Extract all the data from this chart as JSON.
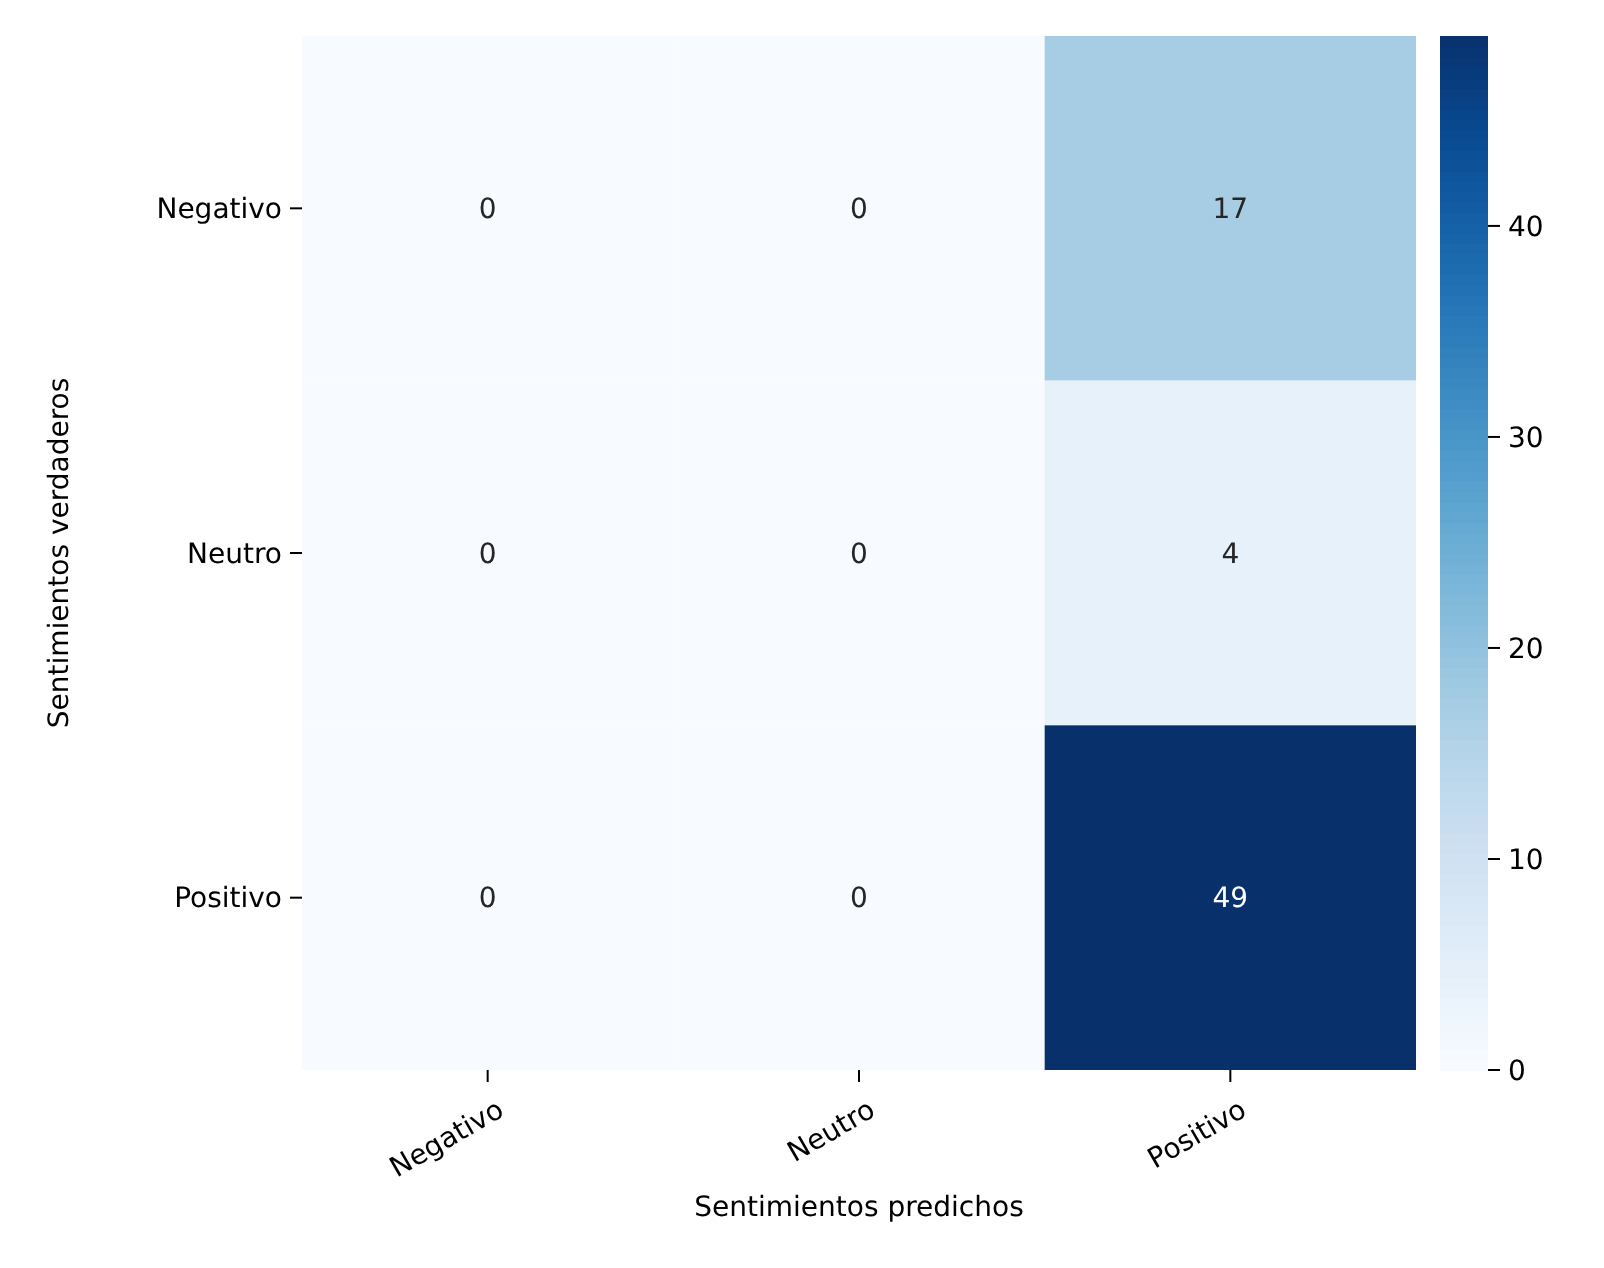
{
  "chart_data": {
    "type": "heatmap",
    "xlabel": "Sentimientos predichos",
    "ylabel": "Sentimientos verdaderos",
    "categories": [
      "Negativo",
      "Neutro",
      "Positivo"
    ],
    "y_categories": [
      "Negativo",
      "Neutro",
      "Positivo"
    ],
    "cells": [
      [
        0,
        0,
        17
      ],
      [
        0,
        0,
        4
      ],
      [
        0,
        0,
        49
      ]
    ],
    "clim": [
      0,
      49
    ],
    "cticks": [
      0,
      10,
      20,
      30,
      40
    ],
    "data_labels": true
  }
}
